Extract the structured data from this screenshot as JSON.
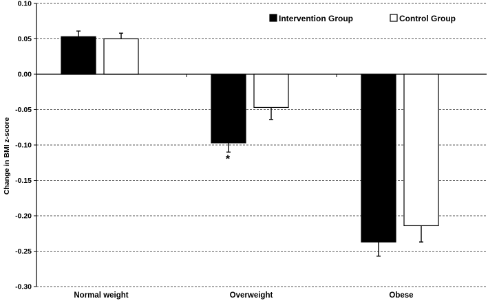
{
  "chart_data": {
    "type": "bar",
    "title": "",
    "xlabel": "",
    "ylabel": "Change in BMI z-score",
    "ylim": [
      -0.3,
      0.1
    ],
    "yticks": [
      "0.10",
      "0.05",
      "0.00",
      "-0.05",
      "-0.10",
      "-0.15",
      "-0.20",
      "-0.25",
      "-0.30"
    ],
    "categories": [
      "Normal weight",
      "Overweight",
      "Obese"
    ],
    "series": [
      {
        "name": "Intervention Group",
        "color": "#000000",
        "values": [
          0.053,
          -0.097,
          -0.237
        ],
        "errors": [
          0.008,
          0.013,
          0.02
        ]
      },
      {
        "name": "Control Group",
        "color": "#ffffff",
        "values": [
          0.05,
          -0.047,
          -0.214
        ],
        "errors": [
          0.008,
          0.017,
          0.023
        ]
      }
    ],
    "grid": true,
    "legend_position": "top-right",
    "annotations": [
      {
        "text": "*",
        "category": "Overweight",
        "series": "Intervention Group"
      }
    ]
  }
}
